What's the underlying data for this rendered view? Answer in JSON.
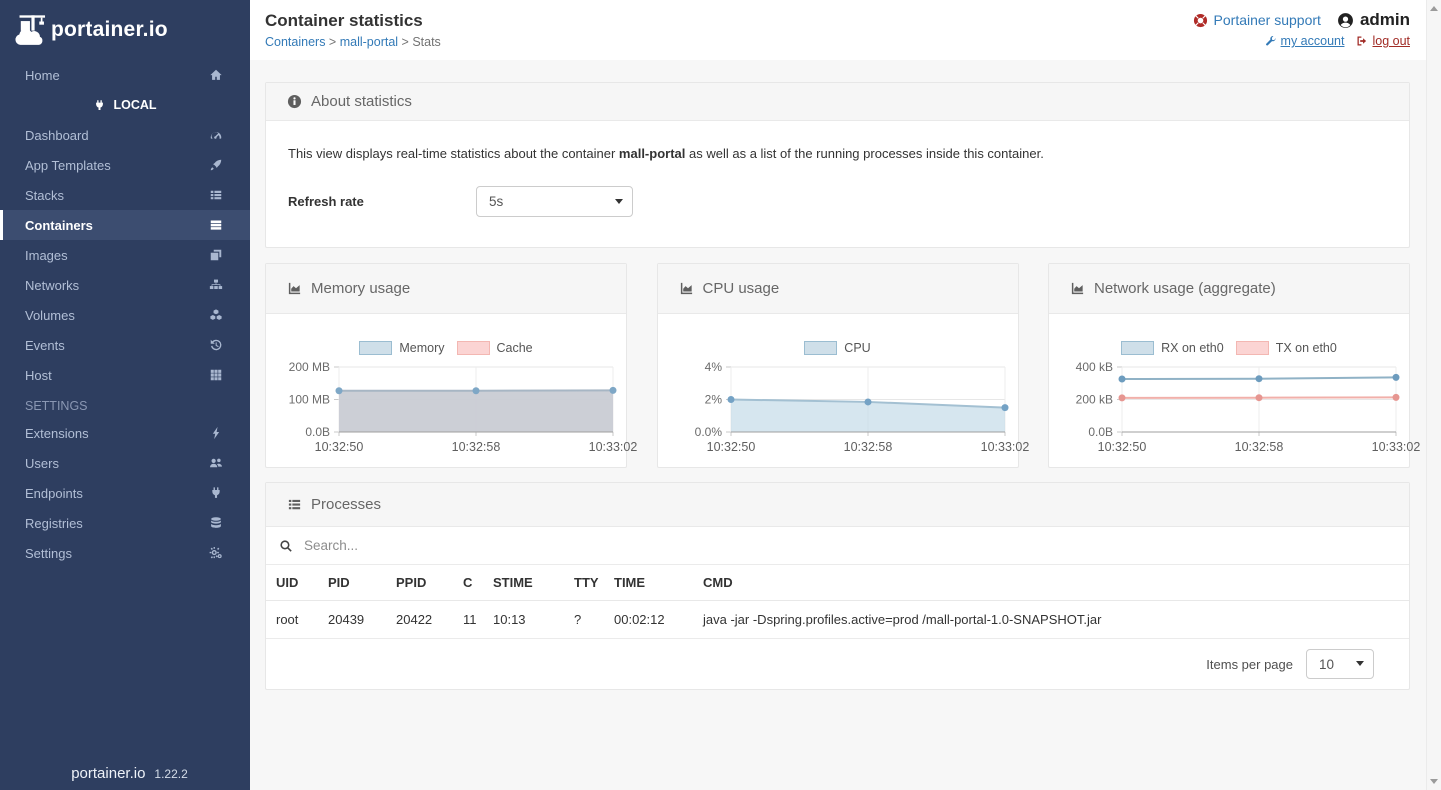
{
  "sidebar": {
    "logo_text": "portainer.io",
    "endpoint_switch_icon": "exchange-icon",
    "home_label": "Home",
    "local_label": "LOCAL",
    "items": [
      {
        "label": "Dashboard",
        "icon": "tachometer-icon"
      },
      {
        "label": "App Templates",
        "icon": "rocket-icon"
      },
      {
        "label": "Stacks",
        "icon": "list-icon"
      },
      {
        "label": "Containers",
        "icon": "server-icon",
        "active": true
      },
      {
        "label": "Images",
        "icon": "clone-icon"
      },
      {
        "label": "Networks",
        "icon": "sitemap-icon"
      },
      {
        "label": "Volumes",
        "icon": "cubes-icon"
      },
      {
        "label": "Events",
        "icon": "history-icon"
      },
      {
        "label": "Host",
        "icon": "grid-icon"
      }
    ],
    "settings_header": "SETTINGS",
    "settings_items": [
      {
        "label": "Extensions",
        "icon": "bolt-icon"
      },
      {
        "label": "Users",
        "icon": "users-icon"
      },
      {
        "label": "Endpoints",
        "icon": "plug-icon"
      },
      {
        "label": "Registries",
        "icon": "database-icon"
      },
      {
        "label": "Settings",
        "icon": "cogs-icon"
      }
    ],
    "footer_logo_text": "portainer.io",
    "footer_version": "1.22.2"
  },
  "header": {
    "title": "Container statistics",
    "breadcrumb": [
      {
        "label": "Containers",
        "link": true
      },
      {
        "label": "mall-portal",
        "link": true
      },
      {
        "label": "Stats",
        "link": false
      }
    ],
    "support_label": "Portainer support",
    "username": "admin",
    "my_account_label": "my account",
    "log_out_label": "log out"
  },
  "about": {
    "title": "About statistics",
    "description_prefix": "This view displays real-time statistics about the container ",
    "container_name": "mall-portal",
    "description_suffix": " as well as a list of the running processes inside this container.",
    "refresh_label": "Refresh rate",
    "refresh_value": "5s"
  },
  "chart_data": [
    {
      "type": "area",
      "title": "Memory usage",
      "x": [
        "10:32:50",
        "10:32:58",
        "10:33:02"
      ],
      "ylim": [
        0,
        200
      ],
      "y_unit": "MB",
      "y_ticks": [
        {
          "v": 200,
          "label": "200 MB"
        },
        {
          "v": 100,
          "label": "100 MB"
        },
        {
          "v": 0,
          "label": "0.0B"
        }
      ],
      "series": [
        {
          "name": "Memory",
          "values": [
            127,
            127,
            128
          ],
          "line": "#a7b6c4",
          "fill": "rgba(201,204,212,0.95)",
          "point": "#7ea7c6",
          "legend_fill": "#cfdfe9",
          "legend_border": "#9bbdd1"
        },
        {
          "name": "Cache",
          "values": [
            0,
            0,
            0
          ],
          "line": "#f1b0aa",
          "fill": "rgba(248,205,202,0.6)",
          "point": "#e69691",
          "legend_fill": "#fbd4d3",
          "legend_border": "#f3b7b2"
        }
      ]
    },
    {
      "type": "area",
      "title": "CPU usage",
      "x": [
        "10:32:50",
        "10:32:58",
        "10:33:02"
      ],
      "ylim": [
        0,
        4
      ],
      "y_unit": "%",
      "y_ticks": [
        {
          "v": 4,
          "label": "4%"
        },
        {
          "v": 2,
          "label": "2%"
        },
        {
          "v": 0,
          "label": "0.0%"
        }
      ],
      "series": [
        {
          "name": "CPU",
          "values": [
            2.0,
            1.85,
            1.5
          ],
          "line": "#a3c0d2",
          "fill": "rgba(197,219,232,0.7)",
          "point": "#74a2c5",
          "legend_fill": "#cfdfe9",
          "legend_border": "#9bbdd1"
        }
      ]
    },
    {
      "type": "line",
      "title": "Network usage (aggregate)",
      "x": [
        "10:32:50",
        "10:32:58",
        "10:33:02"
      ],
      "ylim": [
        0,
        400
      ],
      "y_unit": "kB",
      "y_ticks": [
        {
          "v": 400,
          "label": "400 kB"
        },
        {
          "v": 200,
          "label": "200 kB"
        },
        {
          "v": 0,
          "label": "0.0B"
        }
      ],
      "series": [
        {
          "name": "RX on eth0",
          "values": [
            326,
            328,
            336
          ],
          "line": "#90b2c6",
          "fill": "none",
          "point": "#6d9cbe",
          "legend_fill": "#cfdfe9",
          "legend_border": "#9bbdd1"
        },
        {
          "name": "TX on eth0",
          "values": [
            210,
            211,
            213
          ],
          "line": "#f1b0aa",
          "fill": "none",
          "point": "#e69691",
          "legend_fill": "#fbd4d3",
          "legend_border": "#f3b7b2"
        }
      ]
    }
  ],
  "processes": {
    "title": "Processes",
    "search_placeholder": "Search...",
    "columns": [
      "UID",
      "PID",
      "PPID",
      "C",
      "STIME",
      "TTY",
      "TIME",
      "CMD"
    ],
    "rows": [
      [
        "root",
        "20439",
        "20422",
        "11",
        "10:13",
        "?",
        "00:02:12",
        "java -jar -Dspring.profiles.active=prod /mall-portal-1.0-SNAPSHOT.jar"
      ]
    ],
    "items_per_page_label": "Items per page",
    "items_per_page_value": "10"
  },
  "colors": {
    "sidebar_bg": "#2e3e60",
    "sidebar_active_bg": "#3c4d70",
    "link_blue": "#337ab7",
    "danger_red": "#a12b25",
    "page_bg": "#f7f7f7"
  }
}
